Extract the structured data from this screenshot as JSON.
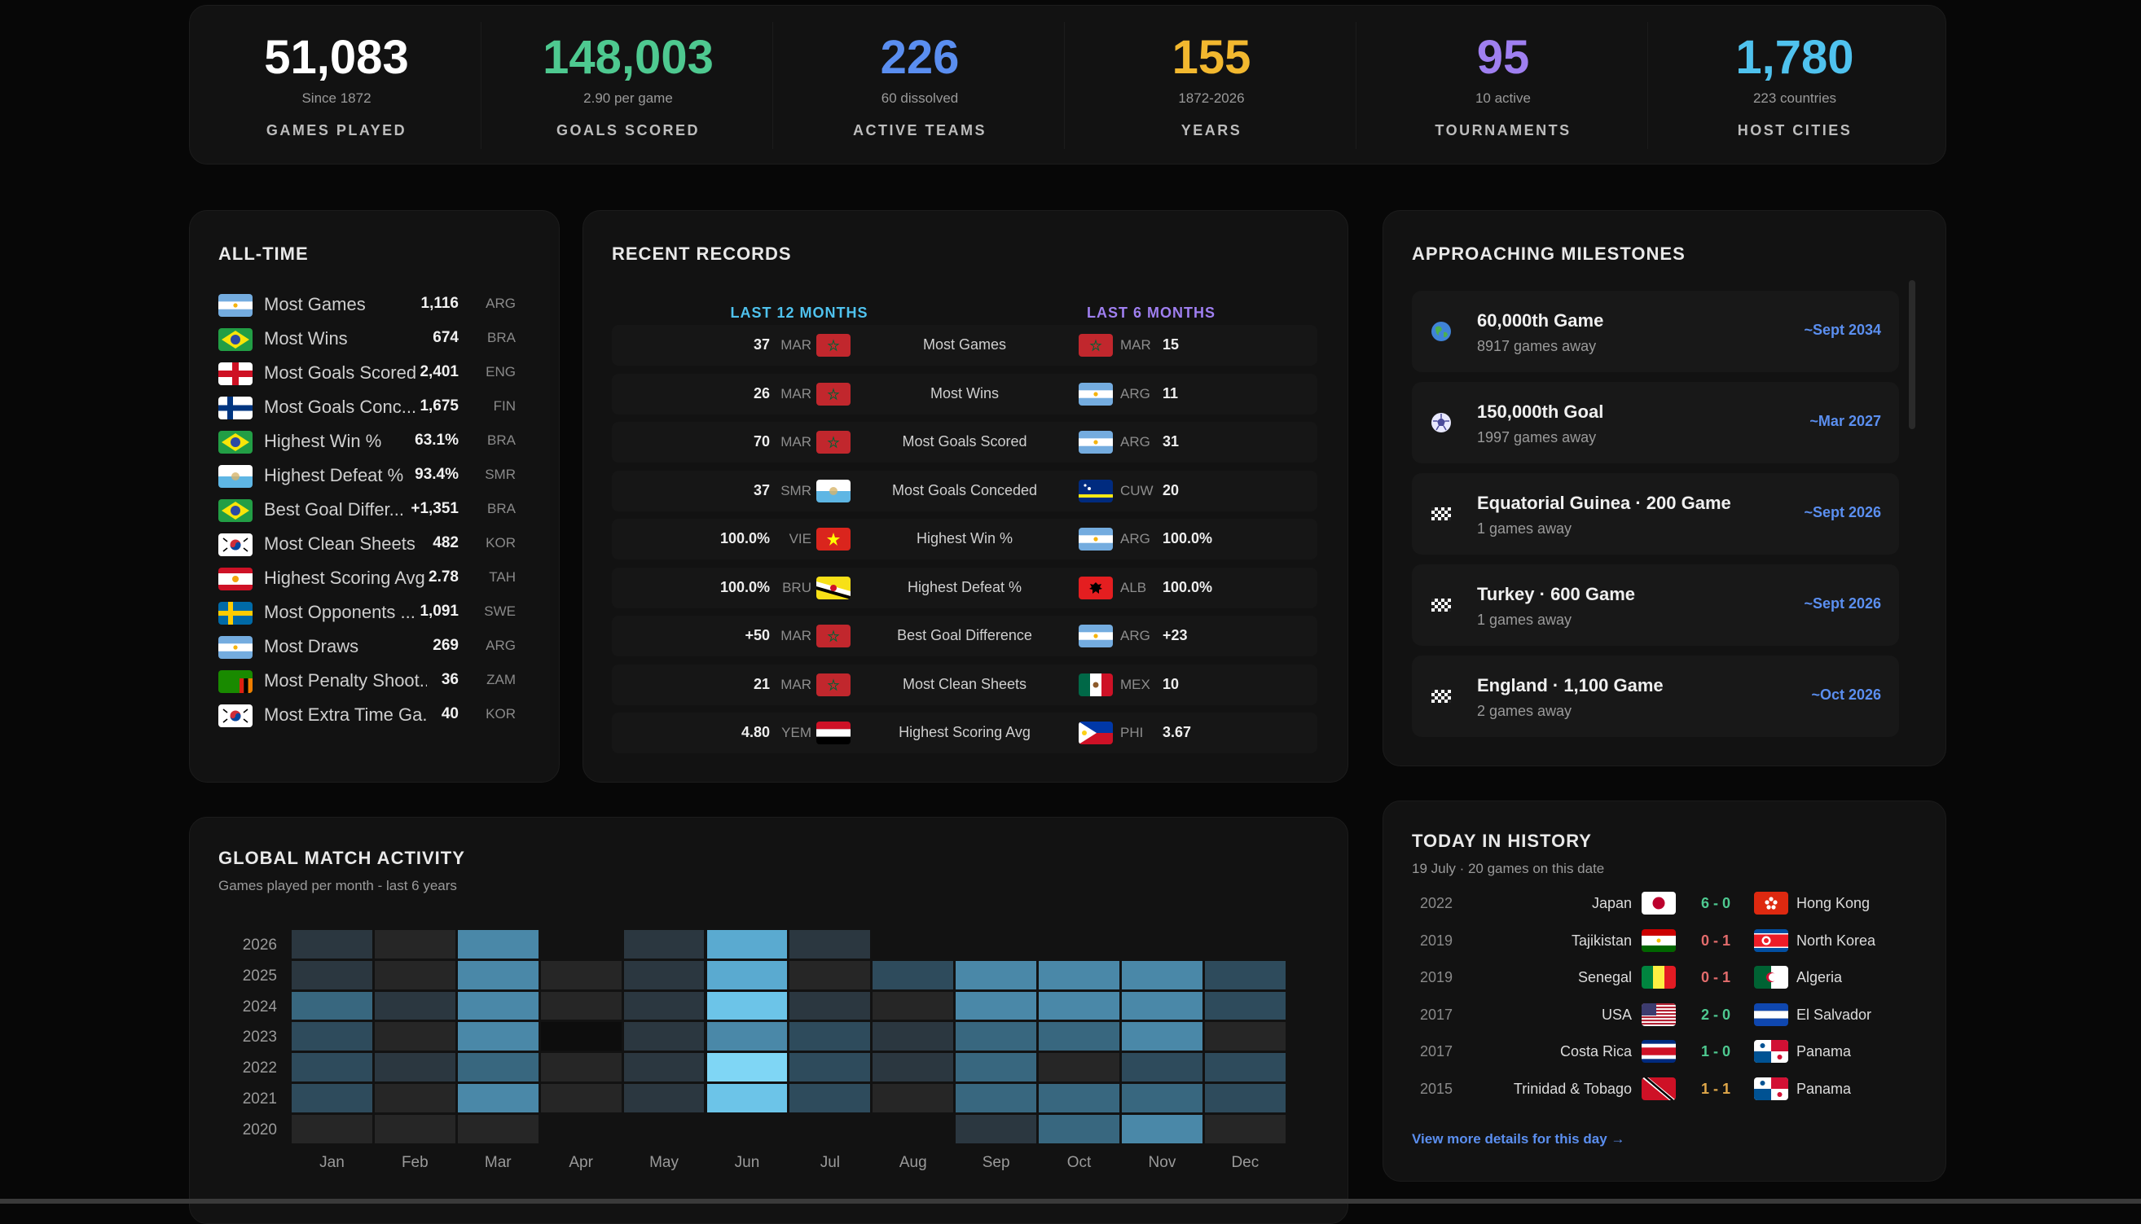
{
  "stats": [
    {
      "value": "51,083",
      "sub": "Since 1872",
      "label": "GAMES PLAYED",
      "color": "#ffffff"
    },
    {
      "value": "148,003",
      "sub": "2.90 per game",
      "label": "GOALS SCORED",
      "color": "#4ec990"
    },
    {
      "value": "226",
      "sub": "60 dissolved",
      "label": "ACTIVE TEAMS",
      "color": "#5a8ef0"
    },
    {
      "value": "155",
      "sub": "1872-2026",
      "label": "YEARS",
      "color": "#f2b82f"
    },
    {
      "value": "95",
      "sub": "10 active",
      "label": "TOURNAMENTS",
      "color": "#9f7ff0"
    },
    {
      "value": "1,780",
      "sub": "223 countries",
      "label": "HOST CITIES",
      "color": "#4fc2ee"
    }
  ],
  "all_time": {
    "title": "ALL-TIME",
    "rows": [
      {
        "label": "Most Games",
        "value": "1,116",
        "code": "ARG",
        "flag": "ARG"
      },
      {
        "label": "Most Wins",
        "value": "674",
        "code": "BRA",
        "flag": "BRA"
      },
      {
        "label": "Most Goals Scored",
        "value": "2,401",
        "code": "ENG",
        "flag": "ENG"
      },
      {
        "label": "Most Goals Conc...",
        "value": "1,675",
        "code": "FIN",
        "flag": "FIN"
      },
      {
        "label": "Highest Win %",
        "value": "63.1%",
        "code": "BRA",
        "flag": "BRA"
      },
      {
        "label": "Highest Defeat %",
        "value": "93.4%",
        "code": "SMR",
        "flag": "SMR"
      },
      {
        "label": "Best Goal Differ...",
        "value": "+1,351",
        "code": "BRA",
        "flag": "BRA"
      },
      {
        "label": "Most Clean Sheets",
        "value": "482",
        "code": "KOR",
        "flag": "KOR"
      },
      {
        "label": "Highest Scoring Avg",
        "value": "2.78",
        "code": "TAH",
        "flag": "TAH"
      },
      {
        "label": "Most Opponents ...",
        "value": "1,091",
        "code": "SWE",
        "flag": "SWE"
      },
      {
        "label": "Most Draws",
        "value": "269",
        "code": "ARG",
        "flag": "ARG"
      },
      {
        "label": "Most Penalty Shoot...",
        "value": "36",
        "code": "ZAM",
        "flag": "ZAM"
      },
      {
        "label": "Most Extra Time Ga...",
        "value": "40",
        "code": "KOR",
        "flag": "KOR"
      }
    ]
  },
  "recent_records": {
    "title": "RECENT RECORDS",
    "left_header": "LAST 12 MONTHS",
    "right_header": "LAST 6 MONTHS",
    "rows": [
      {
        "lv": "37",
        "lc": "MAR",
        "lf": "MAR",
        "label": "Most Games",
        "rf": "MAR",
        "rc": "MAR",
        "rv": "15"
      },
      {
        "lv": "26",
        "lc": "MAR",
        "lf": "MAR",
        "label": "Most Wins",
        "rf": "ARG",
        "rc": "ARG",
        "rv": "11"
      },
      {
        "lv": "70",
        "lc": "MAR",
        "lf": "MAR",
        "label": "Most Goals Scored",
        "rf": "ARG",
        "rc": "ARG",
        "rv": "31"
      },
      {
        "lv": "37",
        "lc": "SMR",
        "lf": "SMR",
        "label": "Most Goals Conceded",
        "rf": "CUW",
        "rc": "CUW",
        "rv": "20"
      },
      {
        "lv": "100.0%",
        "lc": "VIE",
        "lf": "VIE",
        "label": "Highest Win %",
        "rf": "ARG",
        "rc": "ARG",
        "rv": "100.0%"
      },
      {
        "lv": "100.0%",
        "lc": "BRU",
        "lf": "BRU",
        "label": "Highest Defeat %",
        "rf": "ALB",
        "rc": "ALB",
        "rv": "100.0%"
      },
      {
        "lv": "+50",
        "lc": "MAR",
        "lf": "MAR",
        "label": "Best Goal Difference",
        "rf": "ARG",
        "rc": "ARG",
        "rv": "+23"
      },
      {
        "lv": "21",
        "lc": "MAR",
        "lf": "MAR",
        "label": "Most Clean Sheets",
        "rf": "MEX",
        "rc": "MEX",
        "rv": "10"
      },
      {
        "lv": "4.80",
        "lc": "YEM",
        "lf": "YEM",
        "label": "Highest Scoring Avg",
        "rf": "PHI",
        "rc": "PHI",
        "rv": "3.67"
      }
    ]
  },
  "milestones": {
    "title": "APPROACHING MILESTONES",
    "items": [
      {
        "icon": "globe",
        "title": "60,000th Game",
        "sub": "8917 games away",
        "date": "~Sept 2034"
      },
      {
        "icon": "ball",
        "title": "150,000th Goal",
        "sub": "1997 games away",
        "date": "~Mar 2027"
      },
      {
        "icon": "checkered-flag",
        "title": "Equatorial Guinea · 200 Game",
        "sub": "1 games away",
        "date": "~Sept 2026"
      },
      {
        "icon": "checkered-flag",
        "title": "Turkey · 600 Game",
        "sub": "1 games away",
        "date": "~Sept 2026"
      },
      {
        "icon": "checkered-flag",
        "title": "England · 1,100 Game",
        "sub": "2 games away",
        "date": "~Oct 2026"
      }
    ]
  },
  "activity": {
    "title": "GLOBAL MATCH ACTIVITY",
    "subtitle": "Games played per month - last 6 years",
    "months": [
      "Jan",
      "Feb",
      "Mar",
      "Apr",
      "May",
      "Jun",
      "Jul",
      "Aug",
      "Sep",
      "Oct",
      "Nov",
      "Dec"
    ],
    "years": [
      "2026",
      "2025",
      "2024",
      "2023",
      "2022",
      "2021",
      "2020"
    ],
    "levels": [
      [
        2,
        1,
        5,
        null,
        2,
        6,
        2,
        null,
        null,
        null,
        null,
        null
      ],
      [
        2,
        1,
        5,
        1,
        2,
        6,
        1,
        3,
        5,
        5,
        5,
        3
      ],
      [
        4,
        2,
        5,
        1,
        2,
        7,
        2,
        1,
        5,
        5,
        5,
        3
      ],
      [
        3,
        1,
        5,
        0,
        2,
        5,
        3,
        2,
        4,
        4,
        5,
        1
      ],
      [
        3,
        2,
        4,
        1,
        2,
        8,
        3,
        2,
        4,
        1,
        3,
        3
      ],
      [
        3,
        1,
        5,
        1,
        2,
        7,
        3,
        1,
        4,
        4,
        4,
        3
      ],
      [
        1,
        1,
        1,
        null,
        null,
        null,
        null,
        null,
        2,
        4,
        5,
        1
      ]
    ],
    "palette": [
      "#0d0d0d",
      "#262626",
      "#2b3740",
      "#2e4b5c",
      "#38677f",
      "#4a88a8",
      "#5aaad0",
      "#6cc4e8",
      "#7fd6f5"
    ]
  },
  "history": {
    "title": "TODAY IN HISTORY",
    "subtitle": "19 July · 20 games on this date",
    "link": "View more details for this day →",
    "rows": [
      {
        "year": "2022",
        "home": "Japan",
        "hf": "JPN",
        "score": "6 - 0",
        "score_color": "#4ec990",
        "away": "Hong Kong",
        "af": "HKG"
      },
      {
        "year": "2019",
        "home": "Tajikistan",
        "hf": "TJK",
        "score": "0 - 1",
        "score_color": "#e36c6c",
        "away": "North Korea",
        "af": "PRK"
      },
      {
        "year": "2019",
        "home": "Senegal",
        "hf": "SEN",
        "score": "0 - 1",
        "score_color": "#e36c6c",
        "away": "Algeria",
        "af": "ALG"
      },
      {
        "year": "2017",
        "home": "USA",
        "hf": "USA",
        "score": "2 - 0",
        "score_color": "#4ec990",
        "away": "El Salvador",
        "af": "SLV"
      },
      {
        "year": "2017",
        "home": "Costa Rica",
        "hf": "CRC",
        "score": "1 - 0",
        "score_color": "#4ec990",
        "away": "Panama",
        "af": "PAN"
      },
      {
        "year": "2015",
        "home": "Trinidad & Tobago",
        "hf": "TRI",
        "score": "1 - 1",
        "score_color": "#e0a84a",
        "away": "Panama",
        "af": "PAN"
      }
    ]
  }
}
